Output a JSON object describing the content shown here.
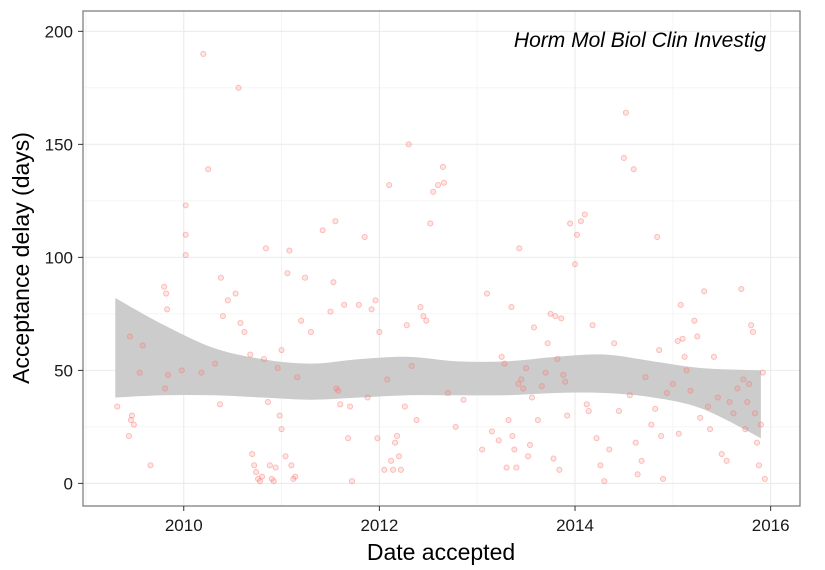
{
  "chart_data": {
    "type": "scatter",
    "title": "",
    "annotation": "Horm Mol Biol Clin Investig",
    "xlabel": "Date accepted",
    "ylabel": "Acceptance delay (days)",
    "xlim": [
      2008.97,
      2016.3
    ],
    "ylim": [
      -10,
      209
    ],
    "x_ticks": [
      2010,
      2012,
      2014,
      2016
    ],
    "y_ticks": [
      0,
      50,
      100,
      150,
      200
    ],
    "grid": true,
    "point_color": "#f8766d",
    "band_color": "#cccccc",
    "smooth": {
      "x": [
        2009.3,
        2009.8,
        2010.3,
        2010.8,
        2011.3,
        2011.8,
        2012.3,
        2012.8,
        2013.3,
        2013.8,
        2014.3,
        2014.8,
        2015.3,
        2015.9
      ],
      "upper": [
        82,
        70,
        60,
        55,
        53,
        55,
        56,
        54,
        54,
        56,
        57,
        54,
        51,
        50
      ],
      "lower": [
        38,
        39,
        39,
        38,
        37,
        38,
        39,
        39,
        39,
        40,
        40,
        38,
        33,
        20
      ]
    },
    "points": [
      [
        2009.32,
        34
      ],
      [
        2009.44,
        21
      ],
      [
        2009.46,
        28
      ],
      [
        2009.47,
        30
      ],
      [
        2009.49,
        26
      ],
      [
        2009.45,
        65
      ],
      [
        2009.58,
        61
      ],
      [
        2009.55,
        49
      ],
      [
        2009.66,
        8
      ],
      [
        2009.8,
        87
      ],
      [
        2009.82,
        84
      ],
      [
        2009.83,
        77
      ],
      [
        2009.81,
        42
      ],
      [
        2009.84,
        48
      ],
      [
        2009.98,
        50
      ],
      [
        2010.02,
        123
      ],
      [
        2010.02,
        110
      ],
      [
        2010.02,
        101
      ],
      [
        2010.2,
        190
      ],
      [
        2010.25,
        139
      ],
      [
        2010.18,
        49
      ],
      [
        2010.32,
        53
      ],
      [
        2010.38,
        91
      ],
      [
        2010.4,
        74
      ],
      [
        2010.37,
        35
      ],
      [
        2010.45,
        81
      ],
      [
        2010.53,
        84
      ],
      [
        2010.56,
        175
      ],
      [
        2010.58,
        71
      ],
      [
        2010.62,
        67
      ],
      [
        2010.68,
        57
      ],
      [
        2010.7,
        13
      ],
      [
        2010.72,
        8
      ],
      [
        2010.74,
        5
      ],
      [
        2010.76,
        2
      ],
      [
        2010.78,
        1
      ],
      [
        2010.8,
        3
      ],
      [
        2010.82,
        55
      ],
      [
        2010.84,
        104
      ],
      [
        2010.86,
        36
      ],
      [
        2010.88,
        8
      ],
      [
        2010.9,
        2
      ],
      [
        2010.92,
        1
      ],
      [
        2010.94,
        7
      ],
      [
        2010.96,
        51
      ],
      [
        2010.98,
        30
      ],
      [
        2011.0,
        24
      ],
      [
        2011.0,
        59
      ],
      [
        2011.04,
        12
      ],
      [
        2011.06,
        93
      ],
      [
        2011.08,
        103
      ],
      [
        2011.1,
        8
      ],
      [
        2011.12,
        2
      ],
      [
        2011.14,
        3
      ],
      [
        2011.16,
        47
      ],
      [
        2011.2,
        72
      ],
      [
        2011.24,
        91
      ],
      [
        2011.3,
        67
      ],
      [
        2011.42,
        112
      ],
      [
        2011.5,
        76
      ],
      [
        2011.53,
        89
      ],
      [
        2011.55,
        116
      ],
      [
        2011.56,
        42
      ],
      [
        2011.58,
        41
      ],
      [
        2011.6,
        35
      ],
      [
        2011.64,
        79
      ],
      [
        2011.68,
        20
      ],
      [
        2011.7,
        34
      ],
      [
        2011.72,
        1
      ],
      [
        2011.79,
        79
      ],
      [
        2011.85,
        109
      ],
      [
        2011.88,
        38
      ],
      [
        2011.92,
        77
      ],
      [
        2011.96,
        81
      ],
      [
        2012.0,
        67
      ],
      [
        2011.98,
        20
      ],
      [
        2012.05,
        6
      ],
      [
        2012.08,
        46
      ],
      [
        2012.1,
        132
      ],
      [
        2012.12,
        10
      ],
      [
        2012.14,
        6
      ],
      [
        2012.16,
        18
      ],
      [
        2012.18,
        21
      ],
      [
        2012.2,
        12
      ],
      [
        2012.22,
        6
      ],
      [
        2012.26,
        34
      ],
      [
        2012.28,
        70
      ],
      [
        2012.3,
        150
      ],
      [
        2012.33,
        52
      ],
      [
        2012.38,
        28
      ],
      [
        2012.42,
        78
      ],
      [
        2012.45,
        74
      ],
      [
        2012.48,
        72
      ],
      [
        2012.52,
        115
      ],
      [
        2012.55,
        129
      ],
      [
        2012.6,
        132
      ],
      [
        2012.65,
        140
      ],
      [
        2012.66,
        133
      ],
      [
        2012.7,
        40
      ],
      [
        2012.78,
        25
      ],
      [
        2012.86,
        37
      ],
      [
        2013.05,
        15
      ],
      [
        2013.1,
        84
      ],
      [
        2013.15,
        23
      ],
      [
        2013.22,
        19
      ],
      [
        2013.25,
        56
      ],
      [
        2013.28,
        53
      ],
      [
        2013.3,
        7
      ],
      [
        2013.32,
        28
      ],
      [
        2013.35,
        78
      ],
      [
        2013.36,
        21
      ],
      [
        2013.38,
        15
      ],
      [
        2013.4,
        7
      ],
      [
        2013.42,
        44
      ],
      [
        2013.43,
        104
      ],
      [
        2013.45,
        46
      ],
      [
        2013.47,
        42
      ],
      [
        2013.5,
        51
      ],
      [
        2013.52,
        12
      ],
      [
        2013.54,
        17
      ],
      [
        2013.56,
        38
      ],
      [
        2013.58,
        69
      ],
      [
        2013.62,
        28
      ],
      [
        2013.66,
        43
      ],
      [
        2013.7,
        49
      ],
      [
        2013.72,
        62
      ],
      [
        2013.75,
        75
      ],
      [
        2013.78,
        11
      ],
      [
        2013.8,
        74
      ],
      [
        2013.82,
        55
      ],
      [
        2013.84,
        6
      ],
      [
        2013.86,
        73
      ],
      [
        2013.88,
        48
      ],
      [
        2013.9,
        45
      ],
      [
        2013.92,
        30
      ],
      [
        2013.95,
        115
      ],
      [
        2014.0,
        97
      ],
      [
        2014.02,
        110
      ],
      [
        2014.06,
        116
      ],
      [
        2014.1,
        119
      ],
      [
        2014.12,
        35
      ],
      [
        2014.14,
        32
      ],
      [
        2014.18,
        70
      ],
      [
        2014.22,
        20
      ],
      [
        2014.26,
        8
      ],
      [
        2014.3,
        1
      ],
      [
        2014.35,
        15
      ],
      [
        2014.4,
        62
      ],
      [
        2014.45,
        32
      ],
      [
        2014.5,
        144
      ],
      [
        2014.52,
        164
      ],
      [
        2014.56,
        39
      ],
      [
        2014.6,
        139
      ],
      [
        2014.62,
        18
      ],
      [
        2014.64,
        4
      ],
      [
        2014.68,
        10
      ],
      [
        2014.72,
        47
      ],
      [
        2014.78,
        26
      ],
      [
        2014.82,
        33
      ],
      [
        2014.84,
        109
      ],
      [
        2014.86,
        59
      ],
      [
        2014.88,
        21
      ],
      [
        2014.9,
        2
      ],
      [
        2014.94,
        40
      ],
      [
        2015.0,
        44
      ],
      [
        2015.05,
        63
      ],
      [
        2015.06,
        22
      ],
      [
        2015.08,
        79
      ],
      [
        2015.1,
        64
      ],
      [
        2015.12,
        56
      ],
      [
        2015.14,
        50
      ],
      [
        2015.18,
        41
      ],
      [
        2015.22,
        72
      ],
      [
        2015.25,
        65
      ],
      [
        2015.28,
        29
      ],
      [
        2015.32,
        85
      ],
      [
        2015.36,
        34
      ],
      [
        2015.38,
        24
      ],
      [
        2015.42,
        56
      ],
      [
        2015.46,
        38
      ],
      [
        2015.5,
        13
      ],
      [
        2015.55,
        10
      ],
      [
        2015.58,
        36
      ],
      [
        2015.62,
        31
      ],
      [
        2015.66,
        42
      ],
      [
        2015.7,
        86
      ],
      [
        2015.72,
        46
      ],
      [
        2015.74,
        24
      ],
      [
        2015.76,
        36
      ],
      [
        2015.78,
        44
      ],
      [
        2015.8,
        70
      ],
      [
        2015.82,
        67
      ],
      [
        2015.84,
        31
      ],
      [
        2015.86,
        18
      ],
      [
        2015.88,
        8
      ],
      [
        2015.9,
        26
      ],
      [
        2015.92,
        49
      ],
      [
        2015.94,
        2
      ]
    ]
  }
}
